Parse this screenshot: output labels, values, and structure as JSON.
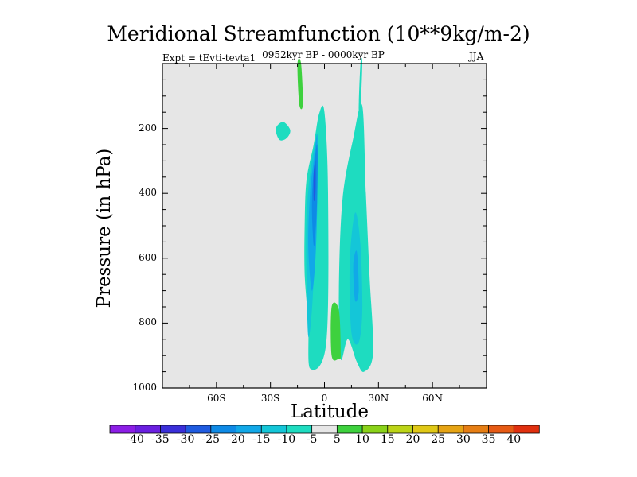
{
  "chart_data": {
    "type": "contour",
    "title": "Meridional Streamfunction (10**9kg/m-2)",
    "subtitle": "0952kyr BP - 0000kyr BP",
    "left_label": "Expt = tEvti-tevta1",
    "right_label": "JJA",
    "xlabel": "Latitude",
    "ylabel": "Pressure (in hPa)",
    "xlim": [
      -90,
      90
    ],
    "ylim": [
      1000,
      0
    ],
    "x_ticks": [
      {
        "value": -60,
        "label": "60S"
      },
      {
        "value": -30,
        "label": "30S"
      },
      {
        "value": 0,
        "label": "0"
      },
      {
        "value": 30,
        "label": "30N"
      },
      {
        "value": 60,
        "label": "60N"
      }
    ],
    "y_ticks": [
      {
        "value": 200,
        "label": "200"
      },
      {
        "value": 400,
        "label": "400"
      },
      {
        "value": 600,
        "label": "600"
      },
      {
        "value": 800,
        "label": "800"
      },
      {
        "value": 1000,
        "label": "1000"
      }
    ],
    "colorbar": {
      "levels": [
        "-40",
        "-35",
        "-30",
        "-25",
        "-20",
        "-15",
        "-10",
        "-5",
        "5",
        "10",
        "15",
        "20",
        "25",
        "30",
        "35",
        "40"
      ],
      "colors": [
        "#8c1ee6",
        "#6a1fe0",
        "#3a2fd9",
        "#1f5be0",
        "#0e8ae6",
        "#11a8e8",
        "#14c6d8",
        "#1edcc0",
        "#e6e6e6",
        "#3ed13e",
        "#8ad219",
        "#bcd417",
        "#e0c816",
        "#e6a414",
        "#e67e14",
        "#e65a14",
        "#e0300f"
      ]
    },
    "features": [
      {
        "fill_index": 7,
        "shape": "band",
        "lat": [
          -8,
          -9,
          -11,
          -11,
          -10,
          -6,
          -3,
          0,
          2,
          1
        ],
        "p": [
          940,
          800,
          650,
          500,
          360,
          250,
          155,
          150,
          400,
          860
        ]
      },
      {
        "fill_index": 6,
        "shape": "band",
        "lat": [
          -9,
          -10,
          -10,
          -8,
          -5,
          -4,
          -5,
          -7
        ],
        "p": [
          840,
          650,
          480,
          340,
          250,
          350,
          550,
          760
        ]
      },
      {
        "fill_index": 5,
        "shape": "band",
        "lat": [
          -7,
          -9,
          -8,
          -6,
          -4,
          -4,
          -5
        ],
        "p": [
          700,
          560,
          400,
          300,
          220,
          420,
          600
        ]
      },
      {
        "fill_index": 4,
        "shape": "band",
        "lat": [
          -6,
          -7,
          -6,
          -4,
          -4,
          -5
        ],
        "p": [
          560,
          440,
          330,
          250,
          400,
          520
        ]
      },
      {
        "fill_index": 3,
        "shape": "band",
        "lat": [
          -6,
          -6,
          -5,
          -5
        ],
        "p": [
          420,
          340,
          300,
          400
        ]
      },
      {
        "fill_index": 7,
        "shape": "band",
        "lat": [
          -25,
          -27,
          -23,
          -19,
          -21
        ],
        "p": [
          235,
          200,
          180,
          205,
          230
        ]
      },
      {
        "fill_index": 9,
        "shape": "band",
        "lat": [
          -14,
          -15,
          -13,
          -12
        ],
        "p": [
          125,
          0,
          0,
          125
        ]
      },
      {
        "fill_index": 7,
        "shape": "band",
        "lat": [
          9,
          8,
          10,
          16,
          21,
          23,
          25,
          27,
          22,
          18,
          13
        ],
        "p": [
          910,
          700,
          420,
          230,
          130,
          400,
          650,
          890,
          950,
          920,
          850
        ]
      },
      {
        "fill_index": 6,
        "shape": "band",
        "lat": [
          15,
          14,
          17,
          20,
          21,
          19
        ],
        "p": [
          830,
          620,
          460,
          560,
          760,
          860
        ]
      },
      {
        "fill_index": 5,
        "shape": "band",
        "lat": [
          17,
          16,
          18,
          19
        ],
        "p": [
          730,
          620,
          580,
          700
        ]
      },
      {
        "fill_index": 7,
        "shape": "band",
        "lat": [
          19,
          20,
          21,
          20
        ],
        "p": [
          140,
          0,
          0,
          140
        ]
      },
      {
        "fill_index": 9,
        "shape": "band",
        "lat": [
          4,
          4,
          8,
          9,
          8
        ],
        "p": [
          900,
          750,
          760,
          895,
          910
        ]
      }
    ]
  }
}
